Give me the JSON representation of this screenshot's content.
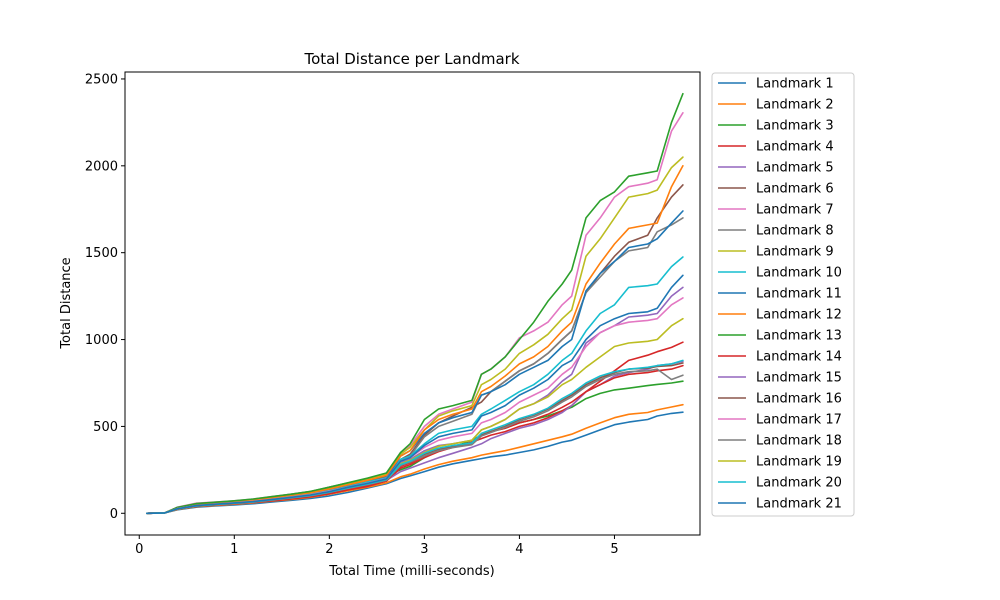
{
  "chart_data": {
    "type": "line",
    "title": "Total Distance per Landmark",
    "xlabel": "Total Time (milli-seconds)",
    "ylabel": "Total Distance",
    "xlim": [
      -0.15,
      5.9
    ],
    "ylim": [
      -125,
      2540
    ],
    "xticks": [
      0,
      1,
      2,
      3,
      4,
      5
    ],
    "yticks": [
      0,
      500,
      1000,
      1500,
      2000,
      2500
    ],
    "grid": false,
    "legend_position": "outside-right-top",
    "x": [
      0.08,
      0.27,
      0.4,
      0.6,
      0.8,
      1.0,
      1.2,
      1.4,
      1.6,
      1.8,
      2.0,
      2.2,
      2.4,
      2.6,
      2.75,
      2.85,
      3.0,
      3.15,
      3.3,
      3.5,
      3.6,
      3.7,
      3.85,
      4.0,
      4.15,
      4.3,
      4.45,
      4.55,
      4.7,
      4.85,
      5.0,
      5.15,
      5.35,
      5.45,
      5.6,
      5.72
    ],
    "series": [
      {
        "name": "Landmark 1",
        "color": "#1f77b4",
        "values": [
          0,
          2,
          20,
          35,
          42,
          48,
          55,
          65,
          75,
          85,
          100,
          120,
          145,
          170,
          200,
          215,
          240,
          265,
          285,
          305,
          315,
          325,
          335,
          350,
          365,
          385,
          410,
          420,
          450,
          480,
          510,
          525,
          540,
          560,
          575,
          582
        ]
      },
      {
        "name": "Landmark 2",
        "color": "#ff7f0e",
        "values": [
          0,
          2,
          22,
          38,
          45,
          52,
          60,
          70,
          80,
          92,
          110,
          130,
          150,
          175,
          210,
          225,
          255,
          280,
          300,
          320,
          335,
          345,
          360,
          380,
          400,
          420,
          440,
          455,
          490,
          520,
          550,
          570,
          580,
          595,
          612,
          625
        ]
      },
      {
        "name": "Landmark 3",
        "color": "#2ca02c",
        "values": [
          0,
          3,
          32,
          55,
          62,
          70,
          80,
          95,
          110,
          125,
          150,
          175,
          195,
          215,
          250,
          270,
          320,
          360,
          380,
          420,
          450,
          470,
          490,
          520,
          540,
          560,
          590,
          610,
          660,
          690,
          710,
          720,
          735,
          742,
          750,
          760
        ]
      },
      {
        "name": "Landmark 4",
        "color": "#d62728",
        "values": [
          0,
          2,
          25,
          40,
          48,
          55,
          62,
          72,
          82,
          95,
          112,
          135,
          155,
          185,
          260,
          280,
          320,
          355,
          380,
          410,
          430,
          450,
          470,
          500,
          520,
          550,
          590,
          620,
          700,
          760,
          820,
          880,
          910,
          930,
          955,
          985
        ]
      },
      {
        "name": "Landmark 5",
        "color": "#9467bd",
        "values": [
          0,
          3,
          28,
          45,
          52,
          60,
          68,
          80,
          90,
          102,
          120,
          145,
          165,
          190,
          240,
          260,
          290,
          320,
          345,
          380,
          400,
          430,
          460,
          490,
          510,
          540,
          580,
          620,
          700,
          740,
          790,
          810,
          830,
          850,
          860,
          875
        ]
      },
      {
        "name": "Landmark 6",
        "color": "#8c564b",
        "values": [
          0,
          2,
          30,
          50,
          58,
          66,
          75,
          88,
          100,
          115,
          135,
          160,
          185,
          210,
          310,
          340,
          450,
          520,
          560,
          610,
          640,
          700,
          760,
          820,
          860,
          920,
          1000,
          1050,
          1270,
          1380,
          1480,
          1560,
          1600,
          1700,
          1820,
          1890
        ]
      },
      {
        "name": "Landmark 7",
        "color": "#e377c2",
        "values": [
          0,
          3,
          35,
          58,
          65,
          72,
          82,
          96,
          110,
          125,
          150,
          175,
          200,
          230,
          350,
          390,
          500,
          570,
          600,
          640,
          800,
          830,
          900,
          1010,
          1050,
          1100,
          1200,
          1250,
          1600,
          1700,
          1820,
          1880,
          1900,
          1920,
          2200,
          2305
        ]
      },
      {
        "name": "Landmark 8",
        "color": "#7f7f7f",
        "values": [
          0,
          2,
          28,
          46,
          54,
          62,
          70,
          82,
          95,
          108,
          128,
          150,
          175,
          200,
          300,
          330,
          440,
          500,
          530,
          570,
          680,
          700,
          760,
          820,
          860,
          920,
          1000,
          1050,
          1270,
          1360,
          1450,
          1510,
          1530,
          1620,
          1660,
          1700
        ]
      },
      {
        "name": "Landmark 9",
        "color": "#bcbd22",
        "values": [
          0,
          3,
          33,
          55,
          62,
          70,
          80,
          94,
          108,
          122,
          145,
          170,
          195,
          225,
          340,
          380,
          480,
          560,
          590,
          620,
          740,
          770,
          830,
          920,
          970,
          1030,
          1120,
          1170,
          1480,
          1580,
          1700,
          1820,
          1840,
          1860,
          1990,
          2050
        ]
      },
      {
        "name": "Landmark 10",
        "color": "#17becf",
        "values": [
          0,
          2,
          28,
          46,
          54,
          62,
          70,
          82,
          95,
          110,
          130,
          155,
          180,
          205,
          310,
          330,
          400,
          460,
          480,
          500,
          570,
          600,
          650,
          700,
          740,
          800,
          880,
          920,
          1050,
          1150,
          1200,
          1300,
          1310,
          1320,
          1420,
          1475
        ]
      },
      {
        "name": "Landmark 11",
        "color": "#1f77b4",
        "values": [
          0,
          2,
          26,
          44,
          52,
          60,
          68,
          80,
          92,
          106,
          125,
          150,
          172,
          200,
          330,
          360,
          460,
          520,
          550,
          580,
          680,
          700,
          740,
          800,
          840,
          880,
          960,
          1000,
          1280,
          1380,
          1450,
          1530,
          1550,
          1580,
          1670,
          1740
        ]
      },
      {
        "name": "Landmark 12",
        "color": "#ff7f0e",
        "values": [
          0,
          3,
          30,
          50,
          58,
          66,
          76,
          90,
          104,
          118,
          140,
          165,
          190,
          218,
          330,
          360,
          480,
          540,
          570,
          600,
          700,
          730,
          790,
          860,
          900,
          960,
          1050,
          1100,
          1320,
          1440,
          1550,
          1640,
          1660,
          1670,
          1880,
          2000
        ]
      },
      {
        "name": "Landmark 13",
        "color": "#2ca02c",
        "values": [
          0,
          3,
          34,
          56,
          64,
          72,
          82,
          96,
          110,
          126,
          150,
          176,
          202,
          232,
          350,
          400,
          540,
          600,
          620,
          650,
          800,
          830,
          900,
          1000,
          1100,
          1220,
          1320,
          1400,
          1700,
          1800,
          1850,
          1940,
          1960,
          1970,
          2250,
          2415
        ]
      },
      {
        "name": "Landmark 14",
        "color": "#d62728",
        "values": [
          0,
          2,
          24,
          40,
          48,
          55,
          62,
          74,
          85,
          98,
          116,
          138,
          160,
          185,
          270,
          290,
          330,
          360,
          380,
          400,
          450,
          470,
          490,
          520,
          540,
          570,
          610,
          640,
          700,
          740,
          780,
          800,
          810,
          820,
          830,
          850
        ]
      },
      {
        "name": "Landmark 15",
        "color": "#9467bd",
        "values": [
          0,
          2,
          27,
          44,
          52,
          60,
          68,
          80,
          92,
          105,
          125,
          150,
          172,
          198,
          290,
          310,
          360,
          390,
          400,
          420,
          480,
          500,
          540,
          600,
          630,
          680,
          760,
          800,
          980,
          1040,
          1080,
          1130,
          1140,
          1150,
          1250,
          1300
        ]
      },
      {
        "name": "Landmark 16",
        "color": "#8c564b",
        "values": [
          0,
          2,
          25,
          42,
          50,
          58,
          66,
          78,
          90,
          103,
          122,
          146,
          168,
          193,
          280,
          300,
          340,
          370,
          385,
          400,
          450,
          470,
          500,
          540,
          565,
          600,
          650,
          680,
          740,
          780,
          810,
          830,
          835,
          845,
          850,
          865
        ]
      },
      {
        "name": "Landmark 17",
        "color": "#e377c2",
        "values": [
          0,
          2,
          27,
          45,
          53,
          61,
          69,
          81,
          93,
          107,
          127,
          151,
          174,
          200,
          300,
          320,
          380,
          420,
          440,
          460,
          520,
          540,
          580,
          640,
          680,
          720,
          800,
          840,
          960,
          1040,
          1080,
          1100,
          1110,
          1120,
          1200,
          1240
        ]
      },
      {
        "name": "Landmark 18",
        "color": "#7f7f7f",
        "values": [
          0,
          2,
          25,
          42,
          50,
          57,
          64,
          76,
          88,
          101,
          120,
          143,
          165,
          190,
          275,
          295,
          330,
          360,
          378,
          395,
          445,
          465,
          495,
          530,
          555,
          590,
          640,
          670,
          730,
          770,
          800,
          815,
          820,
          830,
          770,
          795
        ]
      },
      {
        "name": "Landmark 19",
        "color": "#bcbd22",
        "values": [
          0,
          2,
          26,
          43,
          51,
          59,
          67,
          79,
          91,
          104,
          123,
          147,
          169,
          195,
          285,
          305,
          350,
          385,
          400,
          420,
          480,
          500,
          540,
          600,
          630,
          670,
          740,
          770,
          840,
          900,
          960,
          980,
          990,
          1000,
          1080,
          1120
        ]
      },
      {
        "name": "Landmark 20",
        "color": "#17becf",
        "values": [
          0,
          2,
          25,
          42,
          50,
          58,
          66,
          78,
          90,
          103,
          122,
          146,
          168,
          194,
          280,
          300,
          345,
          375,
          390,
          405,
          460,
          480,
          510,
          545,
          570,
          605,
          660,
          690,
          750,
          790,
          815,
          830,
          840,
          850,
          860,
          880
        ]
      },
      {
        "name": "Landmark 21",
        "color": "#1f77b4",
        "values": [
          0,
          2,
          26,
          44,
          52,
          60,
          68,
          80,
          92,
          105,
          125,
          150,
          172,
          198,
          300,
          320,
          390,
          440,
          460,
          480,
          560,
          580,
          620,
          680,
          720,
          770,
          850,
          880,
          1000,
          1080,
          1120,
          1150,
          1160,
          1180,
          1300,
          1370
        ]
      }
    ]
  }
}
